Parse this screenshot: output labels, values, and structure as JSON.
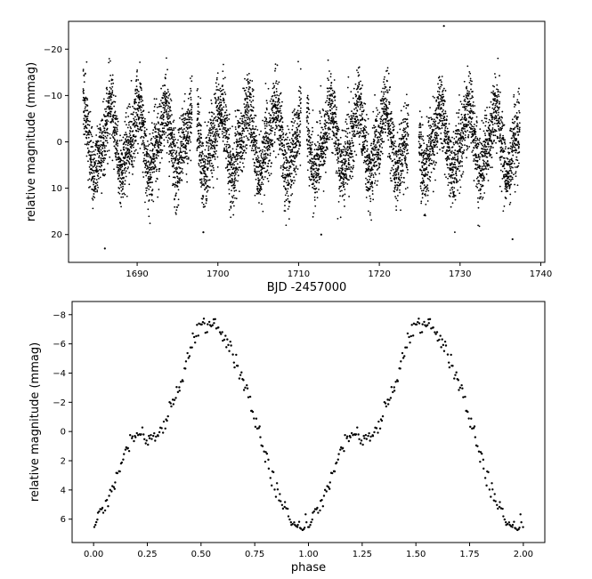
{
  "chart_data": [
    {
      "type": "scatter",
      "title": "",
      "xlabel": "BJD -2457000",
      "ylabel": "relative magnitude (mmag)",
      "xlim": [
        1681.5,
        1740.5
      ],
      "ylim": [
        -26,
        26
      ],
      "y_inverted": true,
      "xticks": [
        1690,
        1700,
        1710,
        1720,
        1730,
        1740
      ],
      "yticks": [
        -20,
        -10,
        0,
        10,
        20
      ],
      "marker_color": "#000000",
      "grid": false,
      "segments": [
        [
          1683.3,
          1696.8
        ],
        [
          1697.4,
          1710.3
        ],
        [
          1711.0,
          1723.6
        ],
        [
          1724.9,
          1737.4
        ]
      ],
      "period_days": 3.41,
      "phase_offset": 0.55,
      "amplitude_mmag": 7.3,
      "noise_mmag": 4.0,
      "n_points": 6500,
      "outliers": [
        {
          "x": 1728.0,
          "y": -25
        },
        {
          "x": 1686.0,
          "y": 23
        },
        {
          "x": 1698.2,
          "y": 19.5
        },
        {
          "x": 1712.8,
          "y": 20
        },
        {
          "x": 1736.5,
          "y": 21
        }
      ]
    },
    {
      "type": "scatter",
      "title": "",
      "xlabel": "phase",
      "ylabel": "relative magnitude (mmag)",
      "xlim": [
        -0.1,
        2.1
      ],
      "ylim": [
        -8.9,
        7.6
      ],
      "y_inverted": true,
      "xticks": [
        0.0,
        0.25,
        0.5,
        0.75,
        1.0,
        1.25,
        1.5,
        1.75,
        2.0
      ],
      "xtick_labels": [
        "0.00",
        "0.25",
        "0.50",
        "0.75",
        "1.00",
        "1.25",
        "1.50",
        "1.75",
        "2.00"
      ],
      "yticks": [
        -8,
        -6,
        -4,
        -2,
        0,
        2,
        4,
        6
      ],
      "marker_color": "#000000",
      "grid": false,
      "phase_curve": {
        "phase": [
          0.0,
          0.05,
          0.1,
          0.15,
          0.18,
          0.2,
          0.22,
          0.25,
          0.28,
          0.33,
          0.4,
          0.46,
          0.5,
          0.54,
          0.58,
          0.63,
          0.7,
          0.76,
          0.82,
          0.87,
          0.92,
          0.96,
          1.0
        ],
        "mag": [
          6.4,
          5.0,
          3.4,
          1.5,
          0.4,
          0.2,
          0.1,
          0.8,
          0.3,
          -0.4,
          -3.0,
          -6.0,
          -7.3,
          -7.4,
          -7.0,
          -5.8,
          -3.5,
          -0.5,
          2.5,
          4.8,
          6.3,
          6.6,
          6.4
        ]
      },
      "n_points_per_cycle": 200,
      "noise_mmag": 0.3,
      "repeat_cycles": 2
    }
  ]
}
